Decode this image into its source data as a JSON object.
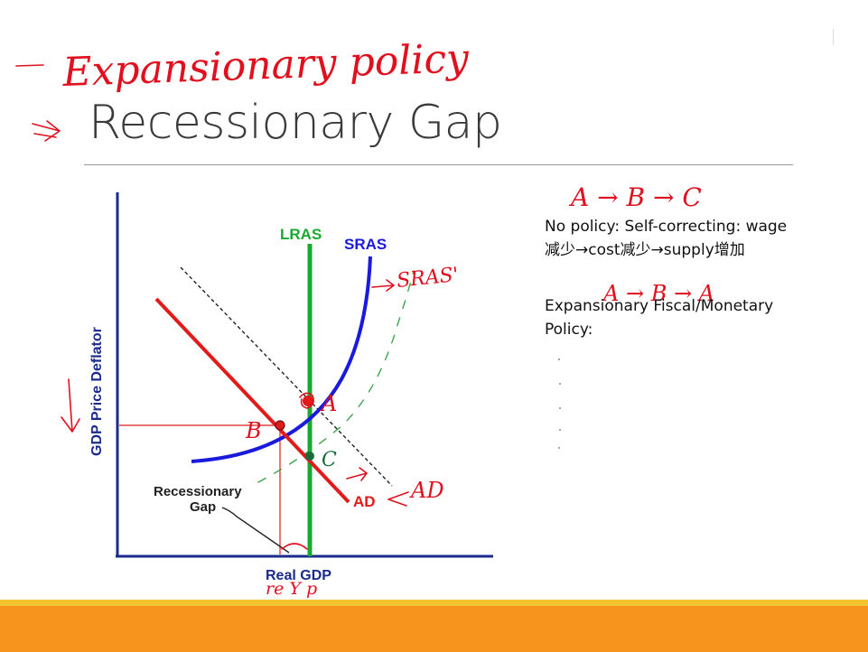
{
  "slide": {
    "title": "Recessionary Gap"
  },
  "annotations": {
    "handwritten_heading": "Expansionary policy",
    "path_top": "A → B → C",
    "path_middle": "A → B → A",
    "sras_shift_label": "SRAS'",
    "ad_shift_label": "AD",
    "real_gdp_note": "re Y p"
  },
  "chart": {
    "y_axis_label": "GDP Price Deflator",
    "x_axis_label": "Real GDP",
    "lras_label": "LRAS",
    "sras_label": "SRAS",
    "ad_label": "AD",
    "gap_label_line1": "Recessionary",
    "gap_label_line2": "Gap",
    "point_a": "A",
    "point_b": "B",
    "point_c": "C"
  },
  "notes": {
    "line1": "No policy: Self-correcting: wage",
    "line2": "减少→cost减少→supply增加",
    "line3": "Expansionary Fiscal/Monetary",
    "line4": "Policy:"
  },
  "colors": {
    "lras": "#1aa830",
    "sras": "#1a1adc",
    "ad": "#e21a1a",
    "axis": "#1b2b8c",
    "handwriting": "#e0101e",
    "footer_orange": "#f7941d",
    "footer_yellow": "#f2c431"
  }
}
